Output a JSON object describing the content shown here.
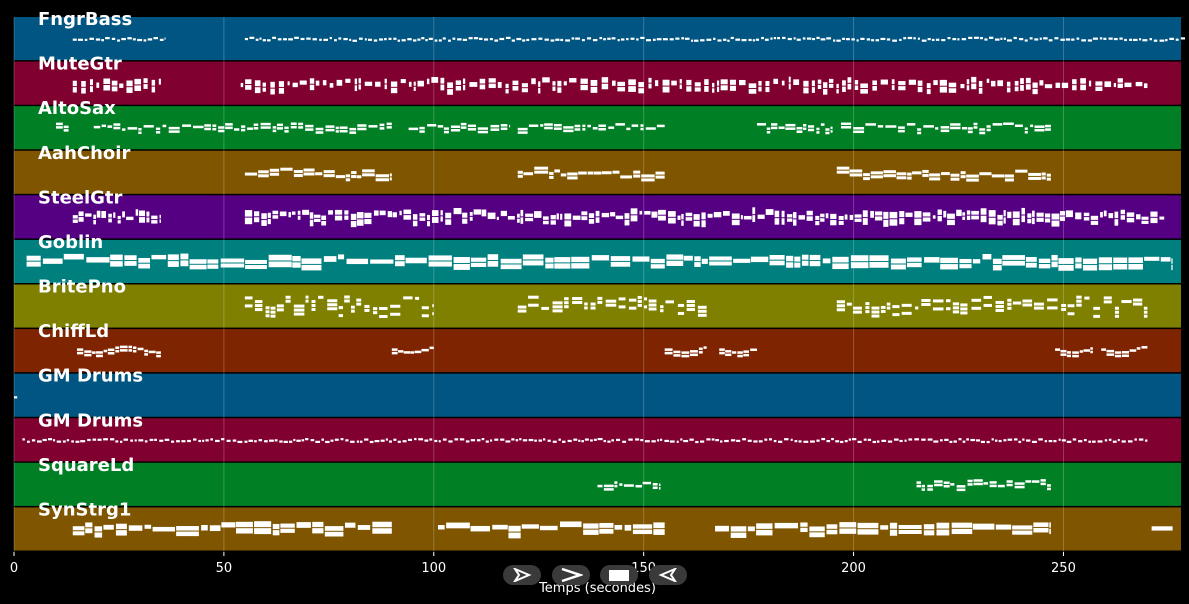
{
  "chart_data": {
    "type": "piano-roll",
    "title": "",
    "xlabel": "Temps (secondes)",
    "ylabel": "",
    "xlim": [
      0,
      278
    ],
    "xticks": [
      0,
      50,
      100,
      150,
      200,
      250
    ],
    "grid": true,
    "tracks": [
      {
        "name": "FngrBass",
        "color": "#005582",
        "style": "dense",
        "rows": 1,
        "segments": [
          [
            14,
            36
          ],
          [
            55,
            279
          ]
        ]
      },
      {
        "name": "MuteGtr",
        "color": "#800030",
        "style": "dashed",
        "rows": 2,
        "segments": [
          [
            14,
            35
          ],
          [
            54,
            270
          ]
        ]
      },
      {
        "name": "AltoSax",
        "color": "#007f25",
        "style": "phrases",
        "rows": 2,
        "segments": [
          [
            10,
            13
          ],
          [
            19,
            90
          ],
          [
            94,
            118
          ],
          [
            120,
            155
          ],
          [
            177,
            195
          ],
          [
            197,
            247
          ]
        ]
      },
      {
        "name": "AahChoir",
        "color": "#7f5500",
        "style": "blocks",
        "rows": 2,
        "segments": [
          [
            55,
            90
          ],
          [
            120,
            155
          ],
          [
            196,
            247
          ]
        ]
      },
      {
        "name": "SteelGtr",
        "color": "#550082",
        "style": "blocks-thick",
        "rows": 2,
        "segments": [
          [
            14,
            35
          ],
          [
            55,
            274
          ]
        ]
      },
      {
        "name": "Goblin",
        "color": "#007f7f",
        "style": "thick",
        "rows": 2,
        "segments": [
          [
            3,
            276
          ]
        ]
      },
      {
        "name": "BritePno",
        "color": "#7f7f00",
        "style": "chords",
        "rows": 3,
        "segments": [
          [
            55,
            100
          ],
          [
            120,
            165
          ],
          [
            196,
            270
          ]
        ]
      },
      {
        "name": "ChiffLd",
        "color": "#7f2400",
        "style": "melody",
        "rows": 2,
        "segments": [
          [
            15,
            35
          ],
          [
            90,
            100
          ],
          [
            155,
            165
          ],
          [
            168,
            177
          ],
          [
            248,
            257
          ],
          [
            259,
            270
          ]
        ]
      },
      {
        "name": "GM Drums",
        "color": "#005582",
        "style": "dense",
        "rows": 1,
        "segments": [
          [
            0,
            1
          ]
        ]
      },
      {
        "name": "GM Drums",
        "color": "#800030",
        "style": "dense",
        "rows": 1,
        "segments": [
          [
            2,
            270
          ]
        ]
      },
      {
        "name": "SquareLd",
        "color": "#007f25",
        "style": "phrases",
        "rows": 2,
        "segments": [
          [
            139,
            154
          ],
          [
            215,
            247
          ]
        ]
      },
      {
        "name": "SynStrg1",
        "color": "#7f5500",
        "style": "thick",
        "rows": 2,
        "segments": [
          [
            14,
            90
          ],
          [
            101,
            155
          ],
          [
            167,
            247
          ],
          [
            271,
            276
          ]
        ]
      }
    ]
  },
  "controls": {
    "icons": [
      "play-outline-icon",
      "fast-forward-icon",
      "stop-icon",
      "rewind-icon"
    ]
  }
}
